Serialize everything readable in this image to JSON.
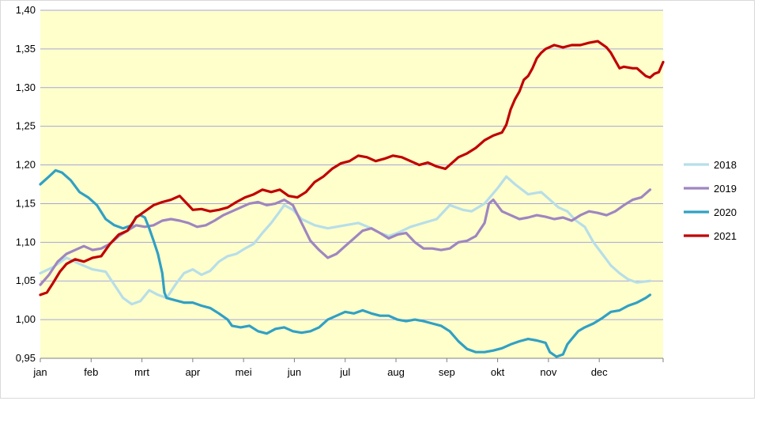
{
  "chart_data": {
    "type": "line",
    "title": "",
    "xlabel": "",
    "ylabel": "",
    "ylim": [
      0.95,
      1.4
    ],
    "yticks": [
      "0,95",
      "1,00",
      "1,05",
      "1,10",
      "1,15",
      "1,20",
      "1,25",
      "1,30",
      "1,35",
      "1,40"
    ],
    "ytick_values": [
      0.95,
      1.0,
      1.05,
      1.1,
      1.15,
      1.2,
      1.25,
      1.3,
      1.35,
      1.4
    ],
    "x_categories": [
      "jan",
      "feb",
      "mrt",
      "apr",
      "mei",
      "jun",
      "jul",
      "aug",
      "sep",
      "okt",
      "nov",
      "dec"
    ],
    "grid": "horizontal",
    "plot_background": "#ffffcc",
    "legend_position": "right",
    "series": [
      {
        "name": "2018",
        "color": "#b7dee8",
        "points": [
          [
            0.0,
            1.06
          ],
          [
            0.3,
            1.068
          ],
          [
            0.6,
            1.08
          ],
          [
            0.9,
            1.072
          ],
          [
            1.2,
            1.065
          ],
          [
            1.5,
            1.062
          ],
          [
            1.7,
            1.045
          ],
          [
            1.9,
            1.028
          ],
          [
            2.1,
            1.02
          ],
          [
            2.3,
            1.024
          ],
          [
            2.5,
            1.038
          ],
          [
            2.7,
            1.032
          ],
          [
            2.9,
            1.028
          ],
          [
            3.1,
            1.045
          ],
          [
            3.3,
            1.06
          ],
          [
            3.5,
            1.065
          ],
          [
            3.7,
            1.058
          ],
          [
            3.9,
            1.063
          ],
          [
            4.1,
            1.075
          ],
          [
            4.3,
            1.082
          ],
          [
            4.5,
            1.085
          ],
          [
            4.7,
            1.092
          ],
          [
            4.9,
            1.098
          ],
          [
            5.1,
            1.112
          ],
          [
            5.3,
            1.125
          ],
          [
            5.5,
            1.14
          ],
          [
            5.6,
            1.148
          ],
          [
            5.8,
            1.142
          ],
          [
            6.0,
            1.13
          ],
          [
            6.3,
            1.122
          ],
          [
            6.6,
            1.118
          ],
          [
            7.0,
            1.122
          ],
          [
            7.3,
            1.125
          ],
          [
            7.6,
            1.118
          ],
          [
            7.8,
            1.112
          ],
          [
            8.0,
            1.108
          ],
          [
            8.2,
            1.112
          ],
          [
            8.5,
            1.12
          ],
          [
            8.8,
            1.125
          ],
          [
            9.1,
            1.13
          ],
          [
            9.4,
            1.148
          ],
          [
            9.7,
            1.142
          ],
          [
            9.9,
            1.14
          ],
          [
            10.2,
            1.15
          ],
          [
            10.5,
            1.17
          ],
          [
            10.7,
            1.185
          ],
          [
            10.9,
            1.175
          ],
          [
            11.2,
            1.162
          ],
          [
            11.5,
            1.165
          ],
          [
            11.7,
            1.155
          ],
          [
            11.9,
            1.145
          ],
          [
            12.1,
            1.14
          ],
          [
            12.3,
            1.128
          ],
          [
            12.5,
            1.12
          ],
          [
            12.7,
            1.1
          ],
          [
            12.9,
            1.085
          ],
          [
            13.1,
            1.07
          ],
          [
            13.3,
            1.06
          ],
          [
            13.5,
            1.052
          ],
          [
            13.7,
            1.048
          ],
          [
            14.0,
            1.05
          ]
        ]
      },
      {
        "name": "2019",
        "color": "#9f86c0",
        "points": [
          [
            0.0,
            1.045
          ],
          [
            0.2,
            1.058
          ],
          [
            0.4,
            1.075
          ],
          [
            0.6,
            1.085
          ],
          [
            0.8,
            1.09
          ],
          [
            1.0,
            1.095
          ],
          [
            1.2,
            1.09
          ],
          [
            1.4,
            1.092
          ],
          [
            1.6,
            1.098
          ],
          [
            1.8,
            1.108
          ],
          [
            2.0,
            1.115
          ],
          [
            2.2,
            1.122
          ],
          [
            2.4,
            1.12
          ],
          [
            2.6,
            1.122
          ],
          [
            2.8,
            1.128
          ],
          [
            3.0,
            1.13
          ],
          [
            3.2,
            1.128
          ],
          [
            3.4,
            1.125
          ],
          [
            3.6,
            1.12
          ],
          [
            3.8,
            1.122
          ],
          [
            4.0,
            1.128
          ],
          [
            4.2,
            1.135
          ],
          [
            4.4,
            1.14
          ],
          [
            4.6,
            1.145
          ],
          [
            4.8,
            1.15
          ],
          [
            5.0,
            1.152
          ],
          [
            5.2,
            1.148
          ],
          [
            5.4,
            1.15
          ],
          [
            5.6,
            1.155
          ],
          [
            5.8,
            1.148
          ],
          [
            6.0,
            1.125
          ],
          [
            6.2,
            1.102
          ],
          [
            6.4,
            1.09
          ],
          [
            6.6,
            1.08
          ],
          [
            6.8,
            1.085
          ],
          [
            7.0,
            1.095
          ],
          [
            7.2,
            1.105
          ],
          [
            7.4,
            1.115
          ],
          [
            7.6,
            1.118
          ],
          [
            7.8,
            1.112
          ],
          [
            8.0,
            1.105
          ],
          [
            8.2,
            1.11
          ],
          [
            8.4,
            1.112
          ],
          [
            8.6,
            1.1
          ],
          [
            8.8,
            1.092
          ],
          [
            9.0,
            1.092
          ],
          [
            9.2,
            1.09
          ],
          [
            9.4,
            1.092
          ],
          [
            9.6,
            1.1
          ],
          [
            9.8,
            1.102
          ],
          [
            10.0,
            1.108
          ],
          [
            10.2,
            1.125
          ],
          [
            10.3,
            1.15
          ],
          [
            10.4,
            1.155
          ],
          [
            10.6,
            1.14
          ],
          [
            10.8,
            1.135
          ],
          [
            11.0,
            1.13
          ],
          [
            11.2,
            1.132
          ],
          [
            11.4,
            1.135
          ],
          [
            11.6,
            1.133
          ],
          [
            11.8,
            1.13
          ],
          [
            12.0,
            1.132
          ],
          [
            12.2,
            1.128
          ],
          [
            12.4,
            1.135
          ],
          [
            12.6,
            1.14
          ],
          [
            12.8,
            1.138
          ],
          [
            13.0,
            1.135
          ],
          [
            13.2,
            1.14
          ],
          [
            13.4,
            1.148
          ],
          [
            13.6,
            1.155
          ],
          [
            13.8,
            1.158
          ],
          [
            14.0,
            1.168
          ]
        ]
      },
      {
        "name": "2020",
        "color": "#31a0c4",
        "points": [
          [
            0.0,
            1.175
          ],
          [
            0.2,
            1.185
          ],
          [
            0.35,
            1.193
          ],
          [
            0.5,
            1.19
          ],
          [
            0.7,
            1.18
          ],
          [
            0.9,
            1.165
          ],
          [
            1.1,
            1.158
          ],
          [
            1.3,
            1.148
          ],
          [
            1.5,
            1.13
          ],
          [
            1.7,
            1.122
          ],
          [
            1.9,
            1.118
          ],
          [
            2.1,
            1.122
          ],
          [
            2.2,
            1.133
          ],
          [
            2.3,
            1.135
          ],
          [
            2.4,
            1.132
          ],
          [
            2.5,
            1.118
          ],
          [
            2.6,
            1.102
          ],
          [
            2.7,
            1.085
          ],
          [
            2.8,
            1.06
          ],
          [
            2.85,
            1.035
          ],
          [
            2.9,
            1.028
          ],
          [
            3.1,
            1.025
          ],
          [
            3.3,
            1.022
          ],
          [
            3.5,
            1.022
          ],
          [
            3.7,
            1.018
          ],
          [
            3.9,
            1.015
          ],
          [
            4.1,
            1.008
          ],
          [
            4.3,
            1.0
          ],
          [
            4.4,
            0.992
          ],
          [
            4.6,
            0.99
          ],
          [
            4.8,
            0.992
          ],
          [
            5.0,
            0.985
          ],
          [
            5.2,
            0.982
          ],
          [
            5.4,
            0.988
          ],
          [
            5.6,
            0.99
          ],
          [
            5.8,
            0.985
          ],
          [
            6.0,
            0.983
          ],
          [
            6.2,
            0.985
          ],
          [
            6.4,
            0.99
          ],
          [
            6.6,
            1.0
          ],
          [
            6.8,
            1.005
          ],
          [
            7.0,
            1.01
          ],
          [
            7.2,
            1.008
          ],
          [
            7.4,
            1.012
          ],
          [
            7.6,
            1.008
          ],
          [
            7.8,
            1.005
          ],
          [
            8.0,
            1.005
          ],
          [
            8.2,
            1.0
          ],
          [
            8.4,
            0.998
          ],
          [
            8.6,
            1.0
          ],
          [
            8.8,
            0.998
          ],
          [
            9.0,
            0.995
          ],
          [
            9.2,
            0.992
          ],
          [
            9.4,
            0.985
          ],
          [
            9.6,
            0.972
          ],
          [
            9.8,
            0.962
          ],
          [
            10.0,
            0.958
          ],
          [
            10.2,
            0.958
          ],
          [
            10.4,
            0.96
          ],
          [
            10.6,
            0.963
          ],
          [
            10.8,
            0.968
          ],
          [
            11.0,
            0.972
          ],
          [
            11.2,
            0.975
          ],
          [
            11.4,
            0.973
          ],
          [
            11.6,
            0.97
          ],
          [
            11.7,
            0.958
          ],
          [
            11.85,
            0.952
          ],
          [
            12.0,
            0.955
          ],
          [
            12.1,
            0.968
          ],
          [
            12.2,
            0.975
          ],
          [
            12.35,
            0.985
          ],
          [
            12.5,
            0.99
          ],
          [
            12.7,
            0.995
          ],
          [
            12.9,
            1.002
          ],
          [
            13.1,
            1.01
          ],
          [
            13.3,
            1.012
          ],
          [
            13.5,
            1.018
          ],
          [
            13.7,
            1.022
          ],
          [
            13.9,
            1.028
          ],
          [
            14.0,
            1.032
          ]
        ]
      },
      {
        "name": "2021",
        "color": "#c00000",
        "points": [
          [
            0.0,
            1.032
          ],
          [
            0.15,
            1.035
          ],
          [
            0.3,
            1.048
          ],
          [
            0.45,
            1.062
          ],
          [
            0.6,
            1.072
          ],
          [
            0.8,
            1.078
          ],
          [
            1.0,
            1.075
          ],
          [
            1.2,
            1.08
          ],
          [
            1.4,
            1.082
          ],
          [
            1.6,
            1.098
          ],
          [
            1.8,
            1.11
          ],
          [
            2.0,
            1.115
          ],
          [
            2.2,
            1.132
          ],
          [
            2.4,
            1.14
          ],
          [
            2.6,
            1.148
          ],
          [
            2.8,
            1.152
          ],
          [
            3.0,
            1.155
          ],
          [
            3.2,
            1.16
          ],
          [
            3.4,
            1.148
          ],
          [
            3.5,
            1.142
          ],
          [
            3.7,
            1.143
          ],
          [
            3.9,
            1.14
          ],
          [
            4.1,
            1.142
          ],
          [
            4.3,
            1.145
          ],
          [
            4.5,
            1.152
          ],
          [
            4.7,
            1.158
          ],
          [
            4.9,
            1.162
          ],
          [
            5.1,
            1.168
          ],
          [
            5.3,
            1.165
          ],
          [
            5.5,
            1.168
          ],
          [
            5.7,
            1.16
          ],
          [
            5.9,
            1.158
          ],
          [
            6.1,
            1.165
          ],
          [
            6.3,
            1.178
          ],
          [
            6.5,
            1.185
          ],
          [
            6.7,
            1.195
          ],
          [
            6.9,
            1.202
          ],
          [
            7.1,
            1.205
          ],
          [
            7.3,
            1.212
          ],
          [
            7.5,
            1.21
          ],
          [
            7.7,
            1.205
          ],
          [
            7.9,
            1.208
          ],
          [
            8.1,
            1.212
          ],
          [
            8.3,
            1.21
          ],
          [
            8.5,
            1.205
          ],
          [
            8.7,
            1.2
          ],
          [
            8.9,
            1.203
          ],
          [
            9.1,
            1.198
          ],
          [
            9.3,
            1.195
          ],
          [
            9.4,
            1.2
          ],
          [
            9.6,
            1.21
          ],
          [
            9.8,
            1.215
          ],
          [
            10.0,
            1.222
          ],
          [
            10.2,
            1.232
          ],
          [
            10.4,
            1.238
          ],
          [
            10.6,
            1.242
          ],
          [
            10.7,
            1.252
          ],
          [
            10.8,
            1.272
          ],
          [
            10.9,
            1.285
          ],
          [
            11.0,
            1.295
          ],
          [
            11.1,
            1.31
          ],
          [
            11.2,
            1.315
          ],
          [
            11.3,
            1.325
          ],
          [
            11.4,
            1.338
          ],
          [
            11.5,
            1.345
          ],
          [
            11.6,
            1.35
          ],
          [
            11.8,
            1.355
          ],
          [
            12.0,
            1.352
          ],
          [
            12.2,
            1.355
          ],
          [
            12.4,
            1.355
          ],
          [
            12.6,
            1.358
          ],
          [
            12.8,
            1.36
          ],
          [
            13.0,
            1.352
          ],
          [
            13.1,
            1.345
          ],
          [
            13.2,
            1.335
          ],
          [
            13.3,
            1.325
          ],
          [
            13.4,
            1.327
          ],
          [
            13.6,
            1.325
          ],
          [
            13.7,
            1.325
          ],
          [
            13.8,
            1.32
          ],
          [
            13.9,
            1.315
          ],
          [
            14.0,
            1.313
          ],
          [
            14.1,
            1.318
          ],
          [
            14.2,
            1.32
          ],
          [
            14.3,
            1.333
          ]
        ]
      }
    ]
  }
}
